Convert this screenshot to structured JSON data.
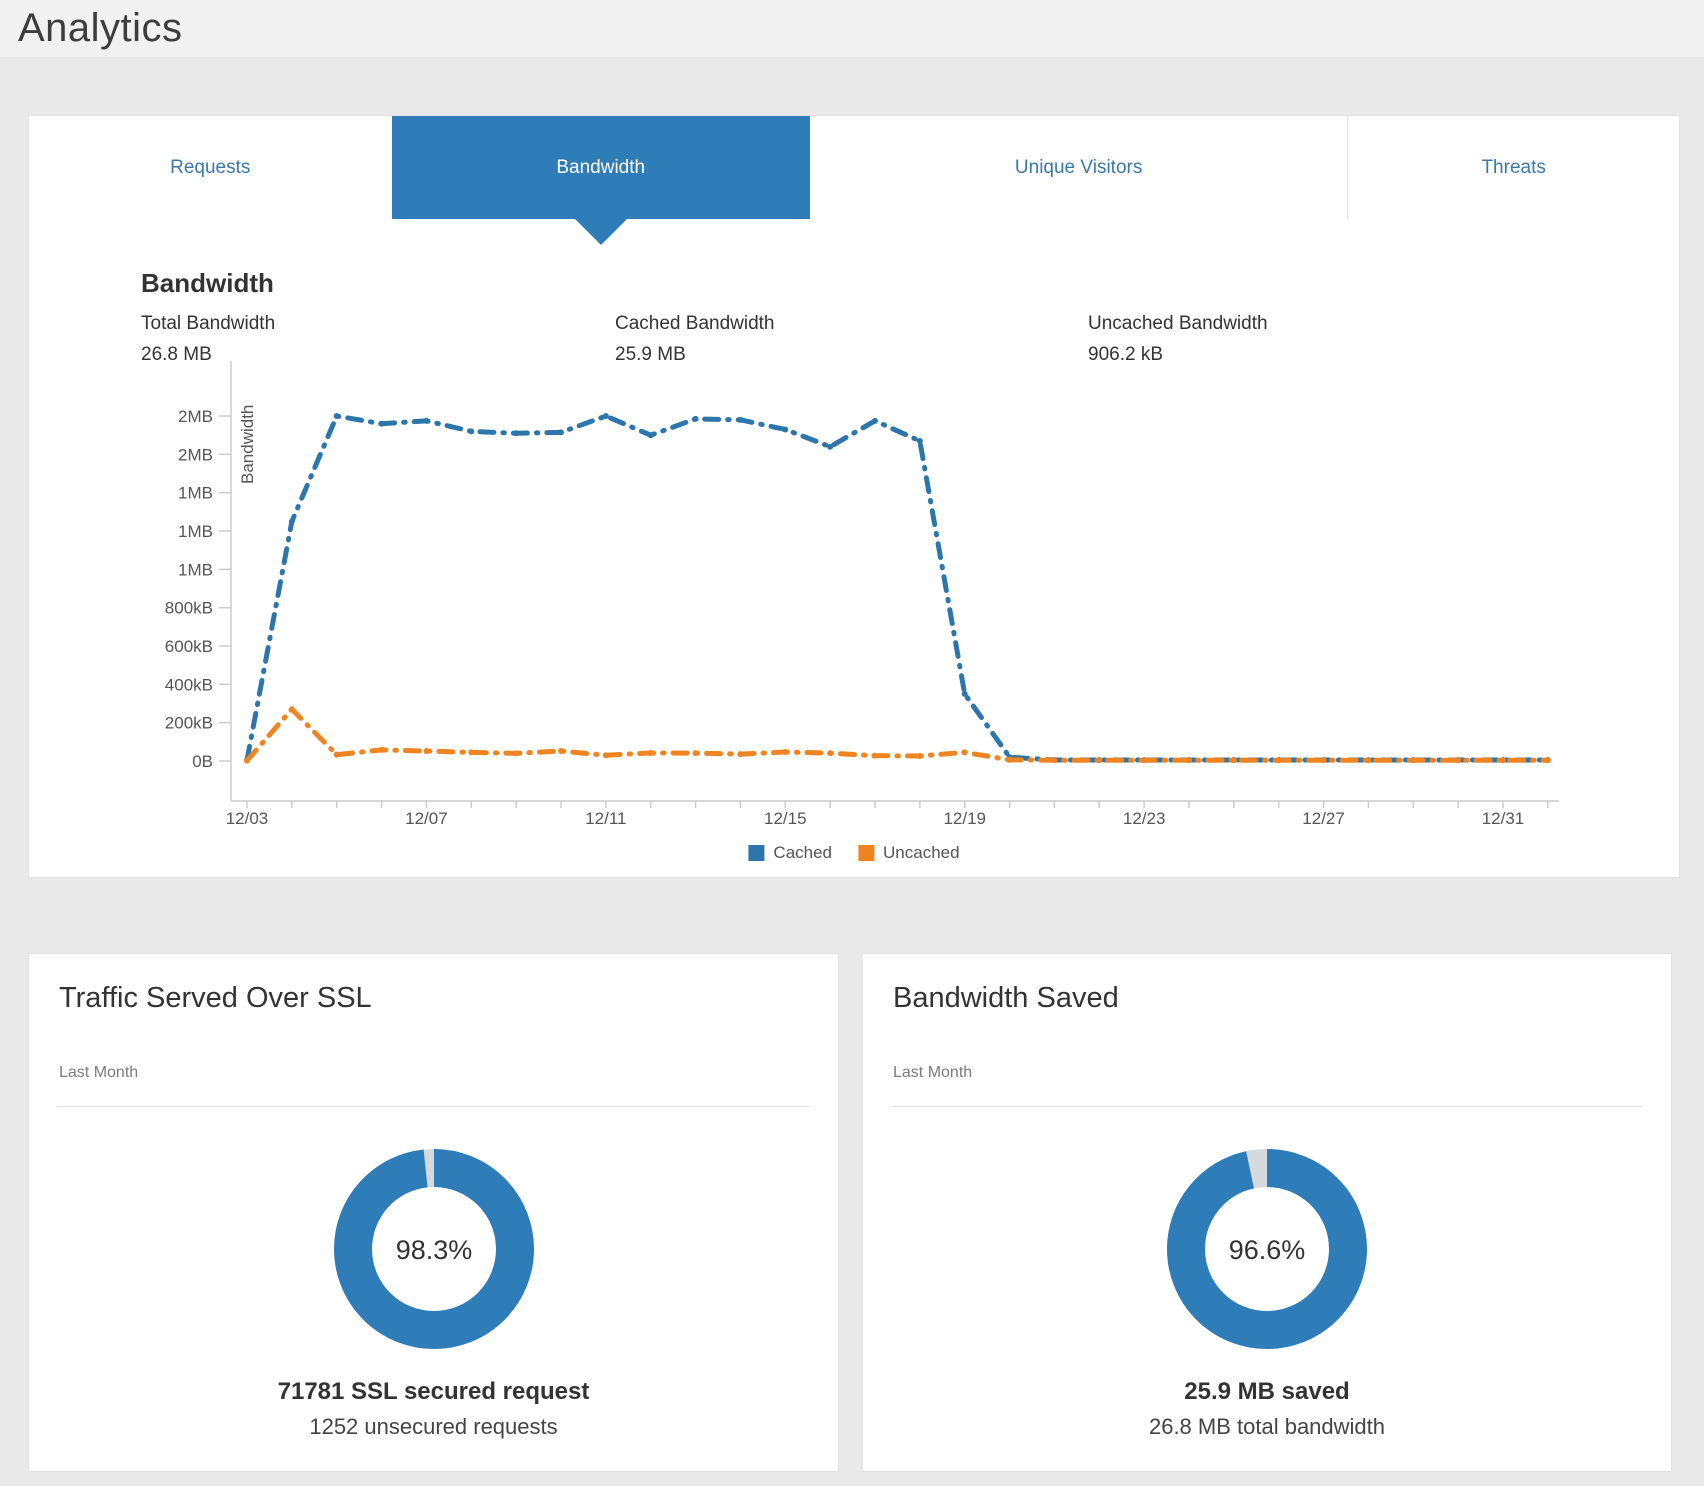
{
  "page": {
    "title": "Analytics"
  },
  "tabs": [
    {
      "label": "Requests",
      "active": false
    },
    {
      "label": "Bandwidth",
      "active": true
    },
    {
      "label": "Unique Visitors",
      "active": false
    },
    {
      "label": "Threats",
      "active": false
    }
  ],
  "bandwidth_section": {
    "heading": "Bandwidth",
    "stats": [
      {
        "label": "Total Bandwidth",
        "value": "26.8 MB"
      },
      {
        "label": "Cached Bandwidth",
        "value": "25.9 MB"
      },
      {
        "label": "Uncached Bandwidth",
        "value": "906.2 kB"
      }
    ]
  },
  "chart_data": {
    "type": "line",
    "x": [
      "12/03",
      "12/04",
      "12/05",
      "12/06",
      "12/07",
      "12/08",
      "12/09",
      "12/10",
      "12/11",
      "12/12",
      "12/13",
      "12/14",
      "12/15",
      "12/16",
      "12/17",
      "12/18",
      "12/19",
      "12/20",
      "12/21",
      "12/22",
      "12/23",
      "12/24",
      "12/25",
      "12/26",
      "12/27",
      "12/28",
      "12/29",
      "12/30",
      "12/31",
      "01/01"
    ],
    "x_axis_labeled_every": 4,
    "x_axis_labels_shown": [
      "12/03",
      "12/07",
      "12/11",
      "12/15",
      "12/19",
      "12/23",
      "12/27",
      "12/31"
    ],
    "ylabel": "Bandwidth",
    "unit": "kB",
    "ylim_kB": [
      0,
      1800
    ],
    "y_tick_step_kB": 200,
    "y_tick_labels_bottom_to_top": [
      "0B",
      "200kB",
      "400kB",
      "600kB",
      "800kB",
      "1MB",
      "1MB",
      "1MB",
      "2MB",
      "2MB"
    ],
    "grid": false,
    "legend_position": "bottom",
    "series": [
      {
        "name": "Cached",
        "color": "#2d76ab",
        "values_kB": [
          5,
          1250,
          1800,
          1760,
          1775,
          1720,
          1710,
          1715,
          1800,
          1700,
          1785,
          1780,
          1730,
          1640,
          1775,
          1670,
          350,
          20,
          5,
          5,
          5,
          5,
          5,
          5,
          5,
          5,
          5,
          5,
          5,
          5
        ]
      },
      {
        "name": "Uncached",
        "color": "#f08421",
        "values_kB": [
          2,
          270,
          33,
          58,
          52,
          45,
          40,
          52,
          30,
          42,
          41,
          36,
          47,
          41,
          28,
          26,
          45,
          6,
          4,
          4,
          4,
          4,
          4,
          4,
          4,
          4,
          4,
          4,
          4,
          4
        ]
      }
    ]
  },
  "ssl_card": {
    "title": "Traffic Served Over SSL",
    "period": "Last Month",
    "percent_label": "98.3%",
    "percent_value": 98.3,
    "primary_stat": "71781 SSL secured request",
    "secondary_stat": "1252 unsecured requests"
  },
  "saved_card": {
    "title": "Bandwidth Saved",
    "period": "Last Month",
    "percent_label": "96.6%",
    "percent_value": 96.6,
    "primary_stat": "25.9 MB saved",
    "secondary_stat": "26.8 MB total bandwidth"
  },
  "colors": {
    "accent_blue": "#2e7cb8",
    "tab_text_blue": "#3b79a8",
    "cached_line": "#2d76ab",
    "uncached_line": "#f08421",
    "donut_track": "#d7dadc",
    "axis_gray": "#cccccc",
    "text_gray": "#555555"
  }
}
